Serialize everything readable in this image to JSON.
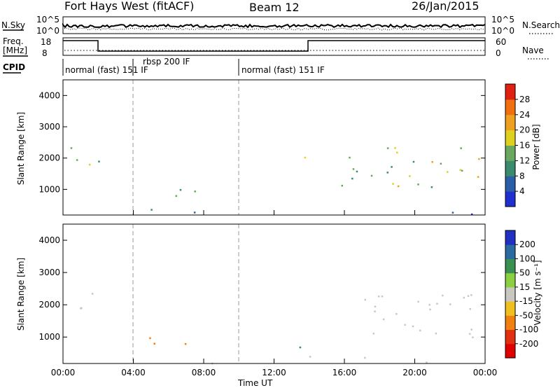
{
  "header": {
    "station": "Fort Hays West (fitACF)",
    "beam": "Beam 12",
    "date": "26/Jan/2015"
  },
  "summary": {
    "nsky_label": "N.Sky",
    "nsky_ticks": [
      "10^5",
      "10^0"
    ],
    "nsearch_label": "N.Search",
    "nsearch_ticks": [
      "10^5",
      "10^0"
    ],
    "freq_label_top": "Freq.",
    "freq_label_bottom": "[MHz]",
    "freq_ticks": [
      "18",
      "8"
    ],
    "nave_label": "Nave",
    "nave_ticks": [
      "60",
      "0"
    ],
    "cpid_label": "CPID",
    "cpid_segments": [
      {
        "label": "normal (fast) 151 IF",
        "start_hour": 0.0
      },
      {
        "label": "rbsp 200 IF",
        "start_hour": 4.0
      },
      {
        "label": "normal (fast) 151 IF",
        "start_hour": 10.0
      }
    ]
  },
  "axes": {
    "x_ticks": [
      "00:00",
      "04:00",
      "08:00",
      "12:00",
      "16:00",
      "20:00",
      "00:00"
    ],
    "x_label": "Time UT",
    "y_ticks": [
      "1000",
      "2000",
      "3000",
      "4000"
    ],
    "y_label": "Slant Range [km]"
  },
  "colorbars": {
    "power": {
      "label": "Power [dB]",
      "ticks": [
        "4",
        "8",
        "12",
        "16",
        "20",
        "24",
        "28"
      ],
      "colors": [
        "#1f2fd0",
        "#2a5fa8",
        "#3a8a6e",
        "#6aa860",
        "#e0d020",
        "#f0a020",
        "#f07010",
        "#e02010"
      ]
    },
    "velocity": {
      "label": "Velocity [m s⁻¹]",
      "ticks": [
        "200",
        "100",
        "50",
        "15",
        "-15",
        "-50",
        "-100",
        "-200"
      ],
      "colors": [
        "#2030c0",
        "#2a6aa0",
        "#3a9050",
        "#8ad040",
        "#c8c8c0",
        "#f0c020",
        "#f08010",
        "#e03010",
        "#e00000"
      ]
    }
  },
  "chart_data": [
    {
      "type": "heatmap",
      "title": "Power",
      "x_range_hours": [
        0,
        24
      ],
      "y_range_km": [
        180,
        4500
      ],
      "regions": [
        {
          "t0": 0.0,
          "t1": 1.9,
          "r0": 1700,
          "r1": 2400,
          "level": 0.55,
          "density": 0.8
        },
        {
          "t0": 1.9,
          "t1": 2.3,
          "r0": 1200,
          "r1": 3200,
          "level": 0.3,
          "density": 0.5
        },
        {
          "t0": 4.2,
          "t1": 7.5,
          "r0": 700,
          "r1": 1150,
          "level": 0.3,
          "density": 0.85
        },
        {
          "t0": 10.3,
          "t1": 11.0,
          "r0": 1100,
          "r1": 1500,
          "level": 0.2,
          "density": 0.4
        },
        {
          "t0": 13.3,
          "t1": 14.0,
          "r0": 700,
          "r1": 2100,
          "level": 0.45,
          "density": 0.6
        },
        {
          "t0": 15.8,
          "t1": 23.8,
          "r0": 1000,
          "r1": 2400,
          "level": 0.5,
          "density": 0.9
        },
        {
          "t0": 0.0,
          "t1": 24.0,
          "r0": 180,
          "r1": 420,
          "level": 0.2,
          "density": 0.25
        }
      ]
    },
    {
      "type": "heatmap",
      "title": "Velocity",
      "x_range_hours": [
        0,
        24
      ],
      "y_range_km": [
        180,
        4500
      ],
      "regions": [
        {
          "t0": 0.0,
          "t1": 1.9,
          "r0": 1700,
          "r1": 2400,
          "velocity": 0,
          "density": 0.8
        },
        {
          "t0": 1.9,
          "t1": 2.3,
          "r0": 2500,
          "r1": 3300,
          "velocity": -200,
          "density": 0.6
        },
        {
          "t0": 1.9,
          "t1": 2.3,
          "r0": 1200,
          "r1": 2200,
          "velocity": -50,
          "density": 0.5
        },
        {
          "t0": 4.2,
          "t1": 7.5,
          "r0": 700,
          "r1": 1150,
          "velocity": -50,
          "density": 0.85
        },
        {
          "t0": 10.3,
          "t1": 11.0,
          "r0": 1100,
          "r1": 1500,
          "velocity": 100,
          "density": 0.4
        },
        {
          "t0": 13.3,
          "t1": 14.0,
          "r0": 700,
          "r1": 2100,
          "velocity": 50,
          "density": 0.6
        },
        {
          "t0": 15.8,
          "t1": 23.8,
          "r0": 1000,
          "r1": 2400,
          "velocity": 0,
          "density": 0.9
        },
        {
          "t0": 0.0,
          "t1": 24.0,
          "r0": 180,
          "r1": 420,
          "velocity": 0,
          "density": 0.25
        }
      ]
    }
  ]
}
